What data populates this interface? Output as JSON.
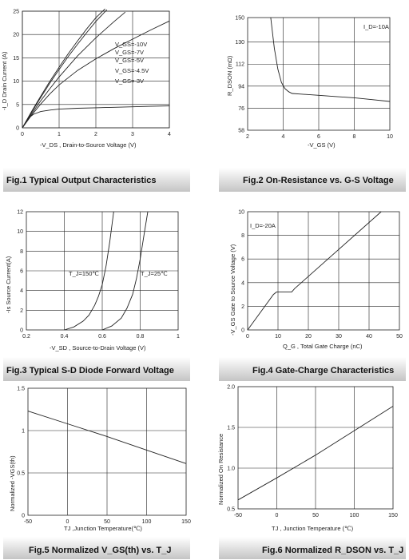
{
  "chart_data": [
    {
      "id": "fig1",
      "type": "line",
      "caption": "Fig.1 Typical Output Characteristics",
      "xlabel": "-V_DS , Drain-to-Source Voltage (V)",
      "ylabel": "-I_D Drain Current (A)",
      "xlim": [
        0,
        4
      ],
      "ylim": [
        0,
        25
      ],
      "xticks": [
        0,
        1,
        2,
        3,
        4
      ],
      "yticks": [
        0,
        5,
        10,
        15,
        20,
        25
      ],
      "xgrid": [
        0,
        1,
        2,
        3,
        4
      ],
      "ygrid": [
        0,
        5,
        10,
        15,
        20,
        25
      ],
      "annotations": [
        "V_GS=-10V",
        "V_GS=-7V",
        "V_GS=-5V",
        "V_GS=-4.5V",
        "V_GS=-3V"
      ],
      "series": [
        {
          "x": [
            0,
            0.25,
            0.5,
            0.75,
            1.0,
            1.25,
            1.5,
            1.75,
            2.0,
            2.25
          ],
          "y": [
            0,
            3.5,
            6.8,
            10.0,
            13.0,
            15.9,
            18.6,
            21.2,
            23.6,
            25.5
          ]
        },
        {
          "x": [
            0,
            0.25,
            0.5,
            0.75,
            1.0,
            1.25,
            1.5,
            1.75,
            2.0,
            2.3
          ],
          "y": [
            0,
            3.3,
            6.5,
            9.6,
            12.5,
            15.3,
            17.9,
            20.4,
            22.8,
            25.3
          ]
        },
        {
          "x": [
            0,
            0.25,
            0.5,
            0.75,
            1.0,
            1.5,
            2.0,
            2.5,
            2.8
          ],
          "y": [
            0,
            3.0,
            5.8,
            8.4,
            10.9,
            15.4,
            19.3,
            22.8,
            24.8
          ]
        },
        {
          "x": [
            0,
            0.25,
            0.5,
            0.75,
            1.0,
            1.5,
            2.0,
            2.5,
            3.0,
            3.5,
            4.0
          ],
          "y": [
            0,
            2.7,
            5.1,
            7.3,
            9.2,
            12.3,
            14.8,
            17.0,
            19.0,
            21.0,
            22.9
          ]
        },
        {
          "x": [
            0,
            0.1,
            0.2,
            0.3,
            0.5,
            0.75,
            1.0,
            1.5,
            2.0,
            2.5,
            3.0,
            3.5,
            4.0
          ],
          "y": [
            0,
            1.3,
            2.3,
            2.9,
            3.5,
            3.8,
            4.0,
            4.2,
            4.3,
            4.4,
            4.5,
            4.6,
            4.7
          ]
        }
      ]
    },
    {
      "id": "fig2",
      "type": "line",
      "caption": "Fig.2 On-Resistance vs. G-S Voltage",
      "xlabel": "-V_GS (V)",
      "ylabel": "R_DSON (mΩ)",
      "xlim": [
        2,
        10
      ],
      "ylim": [
        58,
        150
      ],
      "xticks": [
        2,
        4,
        6,
        8,
        10
      ],
      "yticks": [
        58,
        76,
        94,
        112,
        130,
        150
      ],
      "ytick_labels": [
        "58",
        "76",
        "94",
        "112",
        "130",
        "150"
      ],
      "xgrid": [
        4,
        6,
        8
      ],
      "ygrid": [
        76,
        94,
        112,
        130
      ],
      "annotations": [
        "I_D=-10A"
      ],
      "series": [
        {
          "x": [
            3.3,
            3.5,
            3.7,
            3.9,
            4.1,
            4.3,
            4.5,
            5.0,
            6.0,
            7.0,
            8.0,
            9.0,
            10.0
          ],
          "y": [
            150,
            125,
            108,
            97,
            92,
            89.5,
            88,
            87.5,
            86.5,
            85.5,
            84.5,
            83,
            81.5
          ]
        }
      ]
    },
    {
      "id": "fig3",
      "type": "line",
      "caption": "Fig.3 Typical S-D Diode Forward Voltage",
      "xlabel": "-V_SD , Source-to-Drain Voltage (V)",
      "ylabel": "-Is Source Current(A)",
      "xlim": [
        0.2,
        1.0
      ],
      "ylim": [
        0,
        12
      ],
      "xticks": [
        0.2,
        0.4,
        0.6,
        0.8,
        1.0
      ],
      "xtick_labels": [
        "0.2",
        "0.4",
        "0.6",
        "0.8",
        "1"
      ],
      "yticks": [
        0,
        2,
        4,
        6,
        8,
        10,
        12
      ],
      "xgrid": [
        0.4,
        0.6,
        0.8
      ],
      "ygrid": [
        2,
        4,
        6,
        8,
        10
      ],
      "annotations": [
        "T_J=150℃",
        "T_J=25℃"
      ],
      "series": [
        {
          "x": [
            0.4,
            0.45,
            0.5,
            0.53,
            0.56,
            0.58,
            0.6,
            0.62,
            0.64,
            0.66
          ],
          "y": [
            0,
            0.3,
            0.9,
            1.5,
            2.5,
            3.4,
            4.6,
            6.5,
            9.0,
            12.0
          ]
        },
        {
          "x": [
            0.6,
            0.65,
            0.7,
            0.73,
            0.76,
            0.78,
            0.8,
            0.82,
            0.84
          ],
          "y": [
            0,
            0.4,
            1.2,
            2.2,
            3.6,
            5.2,
            7.2,
            9.6,
            12.0
          ]
        }
      ]
    },
    {
      "id": "fig4",
      "type": "line",
      "caption": "Fig.4 Gate-Charge Characteristics",
      "xlabel": "Q_G , Total Gate Charge (nC)",
      "ylabel": "-V_GS Gate to Source Voltage (V)",
      "xlim": [
        0,
        50
      ],
      "ylim": [
        0,
        10
      ],
      "xticks": [
        0,
        10,
        20,
        30,
        40,
        50
      ],
      "yticks": [
        0,
        2,
        4,
        6,
        8,
        10
      ],
      "xgrid": [
        10,
        20,
        30,
        40
      ],
      "ygrid": [
        2,
        4,
        6,
        8
      ],
      "annotations": [
        "I_D=-20A"
      ],
      "series": [
        {
          "x": [
            0,
            8.5,
            9.5,
            14.5,
            15.5,
            44
          ],
          "y": [
            0,
            3.0,
            3.2,
            3.2,
            3.5,
            10.0
          ]
        }
      ]
    },
    {
      "id": "fig5",
      "type": "line",
      "caption": "Fig.5 Normalized V_GS(th) vs. T_J",
      "xlabel": "TJ ,Junction Temperature(℃)",
      "ylabel": "Normalized -VGS(th)",
      "xlim": [
        -50,
        150
      ],
      "ylim": [
        0,
        1.5
      ],
      "xticks": [
        -50,
        0,
        50,
        100,
        150
      ],
      "yticks": [
        0,
        0.5,
        1.0,
        1.5
      ],
      "ytick_labels": [
        "0",
        "0.5",
        "1",
        "1.5"
      ],
      "xgrid": [
        0,
        50,
        100
      ],
      "ygrid": [
        0.5,
        1.0
      ],
      "series": [
        {
          "x": [
            -50,
            0,
            50,
            100,
            150
          ],
          "y": [
            1.23,
            1.08,
            0.93,
            0.77,
            0.61
          ]
        }
      ]
    },
    {
      "id": "fig6",
      "type": "line",
      "caption": "Fig.6 Normalized R_DSON vs. T_J",
      "xlabel": "TJ , Junction Temperature (℃)",
      "ylabel": "Normalized On Resistance",
      "xlim": [
        -50,
        150
      ],
      "ylim": [
        0.5,
        2.0
      ],
      "xticks": [
        -50,
        0,
        50,
        100,
        150
      ],
      "yticks": [
        0.5,
        1.0,
        1.5,
        2.0
      ],
      "ytick_labels": [
        "0.5",
        "1.0",
        "1.5",
        "2.0"
      ],
      "xgrid": [
        0,
        50,
        100
      ],
      "ygrid": [
        1.0,
        1.5
      ],
      "series": [
        {
          "x": [
            -50,
            0,
            50,
            100,
            150
          ],
          "y": [
            0.61,
            0.88,
            1.16,
            1.46,
            1.76
          ]
        }
      ]
    }
  ]
}
